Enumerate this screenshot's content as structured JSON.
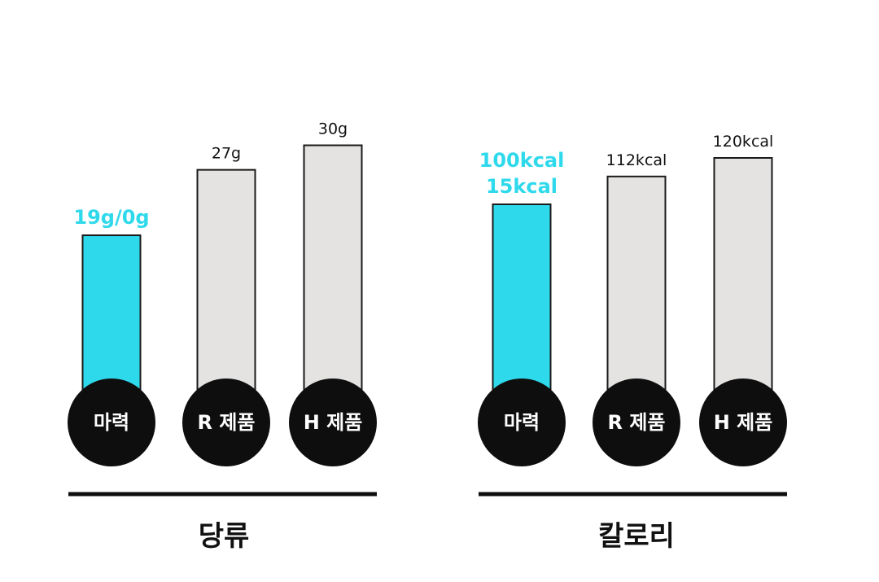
{
  "colors": {
    "highlight": "#2fd9ec",
    "bar_default": "#e4e3e2",
    "bar_stroke": "#1a1a1a",
    "circle": "#0e0e0e",
    "text": "#111111",
    "circle_text": "#ffffff"
  },
  "chart_data": [
    {
      "type": "bar",
      "title": "당류",
      "categories": [
        "마력",
        "R 제품",
        "H 제품"
      ],
      "values": [
        19,
        27,
        30
      ],
      "value_labels": [
        [
          "19g/0g"
        ],
        [
          "27g"
        ],
        [
          "30g"
        ]
      ],
      "highlight_index": 0,
      "ylim": [
        0,
        34
      ],
      "grid": false
    },
    {
      "type": "bar",
      "title": "칼로리",
      "categories": [
        "마력",
        "R 제품",
        "H 제품"
      ],
      "values": [
        100,
        112,
        120
      ],
      "value_labels": [
        [
          "100kcal",
          "15kcal"
        ],
        [
          "112kcal"
        ],
        [
          "120kcal"
        ]
      ],
      "highlight_index": 0,
      "ylim": [
        0,
        134
      ],
      "grid": false
    }
  ]
}
